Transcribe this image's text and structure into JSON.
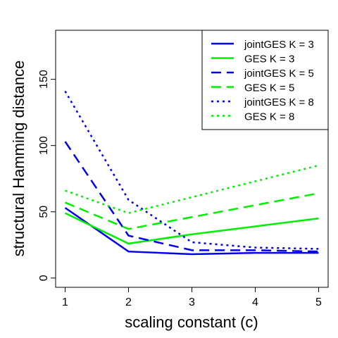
{
  "chart_data": {
    "type": "line",
    "xlabel": "scaling constant (c)",
    "ylabel": "structural Hamming distance",
    "x": [
      1,
      2,
      3,
      4,
      5
    ],
    "x_ticks": [
      "1",
      "2",
      "3",
      "4",
      "5"
    ],
    "y_ticks": [
      "0",
      "50",
      "100",
      "150"
    ],
    "xlim": [
      0.85,
      5.15
    ],
    "ylim": [
      -7,
      187
    ],
    "grid": false,
    "legend_position": "top-right",
    "series": [
      {
        "name": "jointGES K = 3",
        "values": [
          53,
          20,
          18,
          19,
          19
        ],
        "color": "#0000ee",
        "dash": "solid"
      },
      {
        "name": "GES K = 3",
        "values": [
          49,
          26,
          33,
          39,
          45
        ],
        "color": "#00ee00",
        "dash": "solid"
      },
      {
        "name": "jointGES K = 5",
        "values": [
          103,
          32,
          21,
          21,
          20
        ],
        "color": "#0000ee",
        "dash": "dashed"
      },
      {
        "name": "GES K = 5",
        "values": [
          57,
          37,
          46,
          55,
          64
        ],
        "color": "#00ee00",
        "dash": "dashed"
      },
      {
        "name": "jointGES K = 8",
        "values": [
          141,
          59,
          27,
          23,
          22
        ],
        "color": "#0000ee",
        "dash": "dotted"
      },
      {
        "name": "GES K = 8",
        "values": [
          66,
          49,
          61,
          73,
          85
        ],
        "color": "#00ee00",
        "dash": "dotted"
      }
    ]
  }
}
